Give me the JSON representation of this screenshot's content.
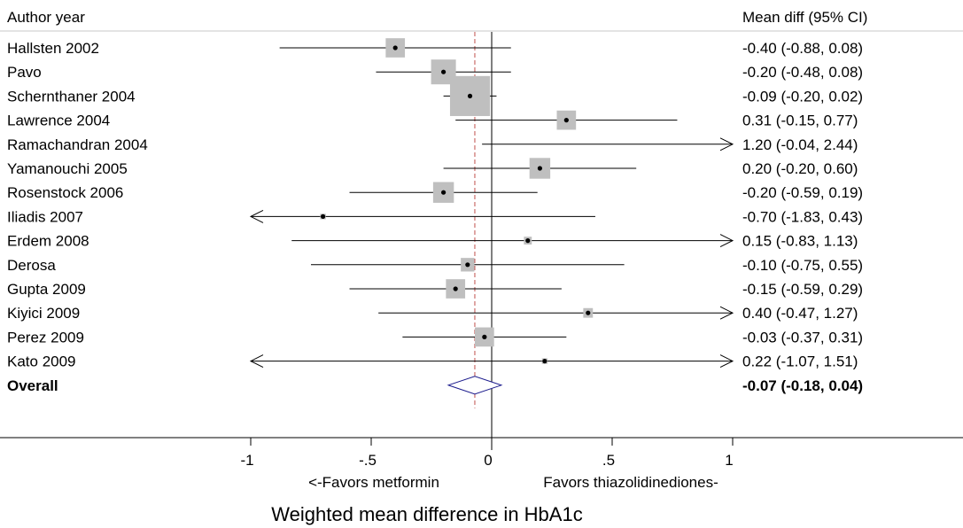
{
  "chart_data": {
    "type": "forest",
    "left_header": "Author year",
    "right_header": "Mean diff (95% CI)",
    "studies": [
      {
        "label": "Hallsten 2002",
        "mean": -0.4,
        "lo": -0.88,
        "hi": 0.08,
        "ci_text": "-0.40 (-0.88, 0.08)",
        "weight": 0.6
      },
      {
        "label": "Pavo",
        "mean": -0.2,
        "lo": -0.48,
        "hi": 0.08,
        "ci_text": "-0.20 (-0.48, 0.08)",
        "weight": 1.0
      },
      {
        "label": "Schernthaner 2004",
        "mean": -0.09,
        "lo": -0.2,
        "hi": 0.02,
        "ci_text": "-0.09 (-0.20, 0.02)",
        "weight": 2.6
      },
      {
        "label": "Lawrence 2004",
        "mean": 0.31,
        "lo": -0.15,
        "hi": 0.77,
        "ci_text": "0.31 (-0.15, 0.77)",
        "weight": 0.6
      },
      {
        "label": "Ramachandran 2004",
        "mean": 1.2,
        "lo": -0.04,
        "hi": 2.44,
        "ci_text": "1.20 (-0.04, 2.44)",
        "weight": 0.0
      },
      {
        "label": "Yamanouchi 2005",
        "mean": 0.2,
        "lo": -0.2,
        "hi": 0.6,
        "ci_text": "0.20 (-0.20, 0.60)",
        "weight": 0.7
      },
      {
        "label": "Rosenstock 2006",
        "mean": -0.2,
        "lo": -0.59,
        "hi": 0.19,
        "ci_text": "-0.20 (-0.59, 0.19)",
        "weight": 0.7
      },
      {
        "label": "Iliadis 2007",
        "mean": -0.7,
        "lo": -1.83,
        "hi": 0.43,
        "ci_text": "-0.70 (-1.83, 0.43)",
        "weight": 0.05
      },
      {
        "label": "Erdem 2008",
        "mean": 0.15,
        "lo": -0.83,
        "hi": 1.13,
        "ci_text": "0.15 (-0.83, 1.13)",
        "weight": 0.1
      },
      {
        "label": "Derosa",
        "mean": -0.1,
        "lo": -0.75,
        "hi": 0.55,
        "ci_text": "-0.10 (-0.75, 0.55)",
        "weight": 0.3
      },
      {
        "label": "Gupta 2009",
        "mean": -0.15,
        "lo": -0.59,
        "hi": 0.29,
        "ci_text": "-0.15 (-0.59, 0.29)",
        "weight": 0.6
      },
      {
        "label": "Kiyici 2009",
        "mean": 0.4,
        "lo": -0.47,
        "hi": 1.27,
        "ci_text": "0.40 (-0.47, 1.27)",
        "weight": 0.15
      },
      {
        "label": "Perez 2009",
        "mean": -0.03,
        "lo": -0.37,
        "hi": 0.31,
        "ci_text": "-0.03 (-0.37, 0.31)",
        "weight": 0.6
      },
      {
        "label": "Kato 2009",
        "mean": 0.22,
        "lo": -1.07,
        "hi": 1.51,
        "ci_text": "0.22 (-1.07, 1.51)",
        "weight": 0.05
      }
    ],
    "overall": {
      "label": "Overall",
      "mean": -0.07,
      "lo": -0.18,
      "hi": 0.04,
      "ci_text": "-0.07 (-0.18, 0.04)"
    },
    "xlim": [
      -1,
      1
    ],
    "x_ticks": [
      {
        "value": -1,
        "label": "-1"
      },
      {
        "value": -0.5,
        "label": "-.5"
      },
      {
        "value": 0,
        "label": "0"
      },
      {
        "value": 0.5,
        "label": ".5"
      },
      {
        "value": 1,
        "label": "1"
      }
    ],
    "favors_left": "<-Favors metformin",
    "favors_right": "Favors thiazolidinediones-",
    "xlabel": "Weighted mean difference in HbA1c",
    "colors": {
      "box": "#bfbfbf",
      "line": "#000000",
      "diamond": "#1a1a8c",
      "pooled_line": "#c0504d",
      "header_rule": "#c8c8c8"
    }
  }
}
